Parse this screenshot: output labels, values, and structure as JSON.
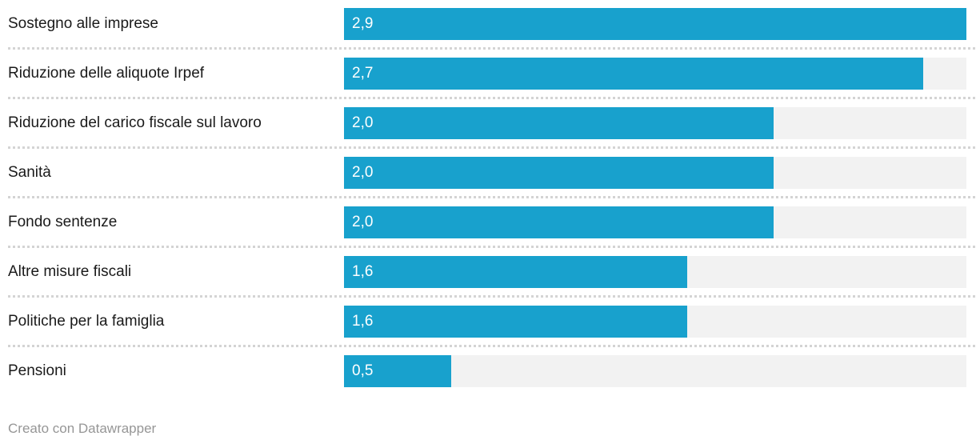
{
  "chart_data": {
    "type": "bar",
    "orientation": "horizontal",
    "title": "",
    "xlabel": "",
    "ylabel": "",
    "grid": "off",
    "legend": "none",
    "xlim": [
      0,
      2.9
    ],
    "value_label_position": "inside-start",
    "decimal_format": "comma",
    "categories": [
      "Sostegno alle imprese",
      "Riduzione delle aliquote Irpef",
      "Riduzione del carico fiscale sul lavoro",
      "Sanità",
      "Fondo sentenze",
      "Altre misure fiscali",
      "Politiche per la famiglia",
      "Pensioni"
    ],
    "values": [
      2.9,
      2.7,
      2.0,
      2.0,
      2.0,
      1.6,
      1.6,
      0.5
    ],
    "value_labels": [
      "2,9",
      "2,7",
      "2,0",
      "2,0",
      "2,0",
      "1,6",
      "1,6",
      "0,5"
    ],
    "bar_color": "#18a1cd",
    "track_color": "#f2f2f2",
    "separator_color": "#d4d4d4",
    "label_color": "#1a1a1a",
    "value_label_color": "#ffffff"
  },
  "footer": {
    "credit": "Creato con Datawrapper"
  }
}
